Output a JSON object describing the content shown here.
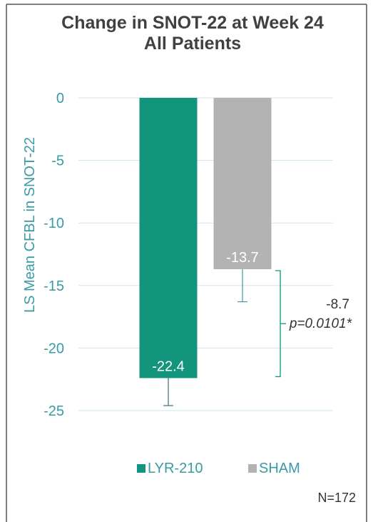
{
  "chart_data": {
    "type": "bar",
    "title": "Change in SNOT-22 at Week 24",
    "subtitle": "All Patients",
    "ylabel": "LS Mean CFBL in SNOT-22",
    "ylim": [
      -25,
      0
    ],
    "yticks": [
      "0",
      "-5",
      "-10",
      "-15",
      "-20",
      "-25"
    ],
    "grid": true,
    "legend_position": "bottom",
    "categories": [
      "LYR-210",
      "SHAM"
    ],
    "series": [
      {
        "name": "LYR-210",
        "value": -22.4,
        "label": "-22.4",
        "error": 2.2,
        "color": "#12957c"
      },
      {
        "name": "SHAM",
        "value": -13.7,
        "label": "-13.7",
        "error": 2.6,
        "color": "#b3b3b3"
      }
    ],
    "annotation": {
      "difference": "-8.7",
      "p_value": "p=0.0101*",
      "color": "#12957c"
    }
  },
  "footnote": "N=172",
  "colors": {
    "axis_text": "#3a9aa6",
    "grid": "#cfe5ea",
    "frame": "#555555",
    "title": "#404040"
  }
}
